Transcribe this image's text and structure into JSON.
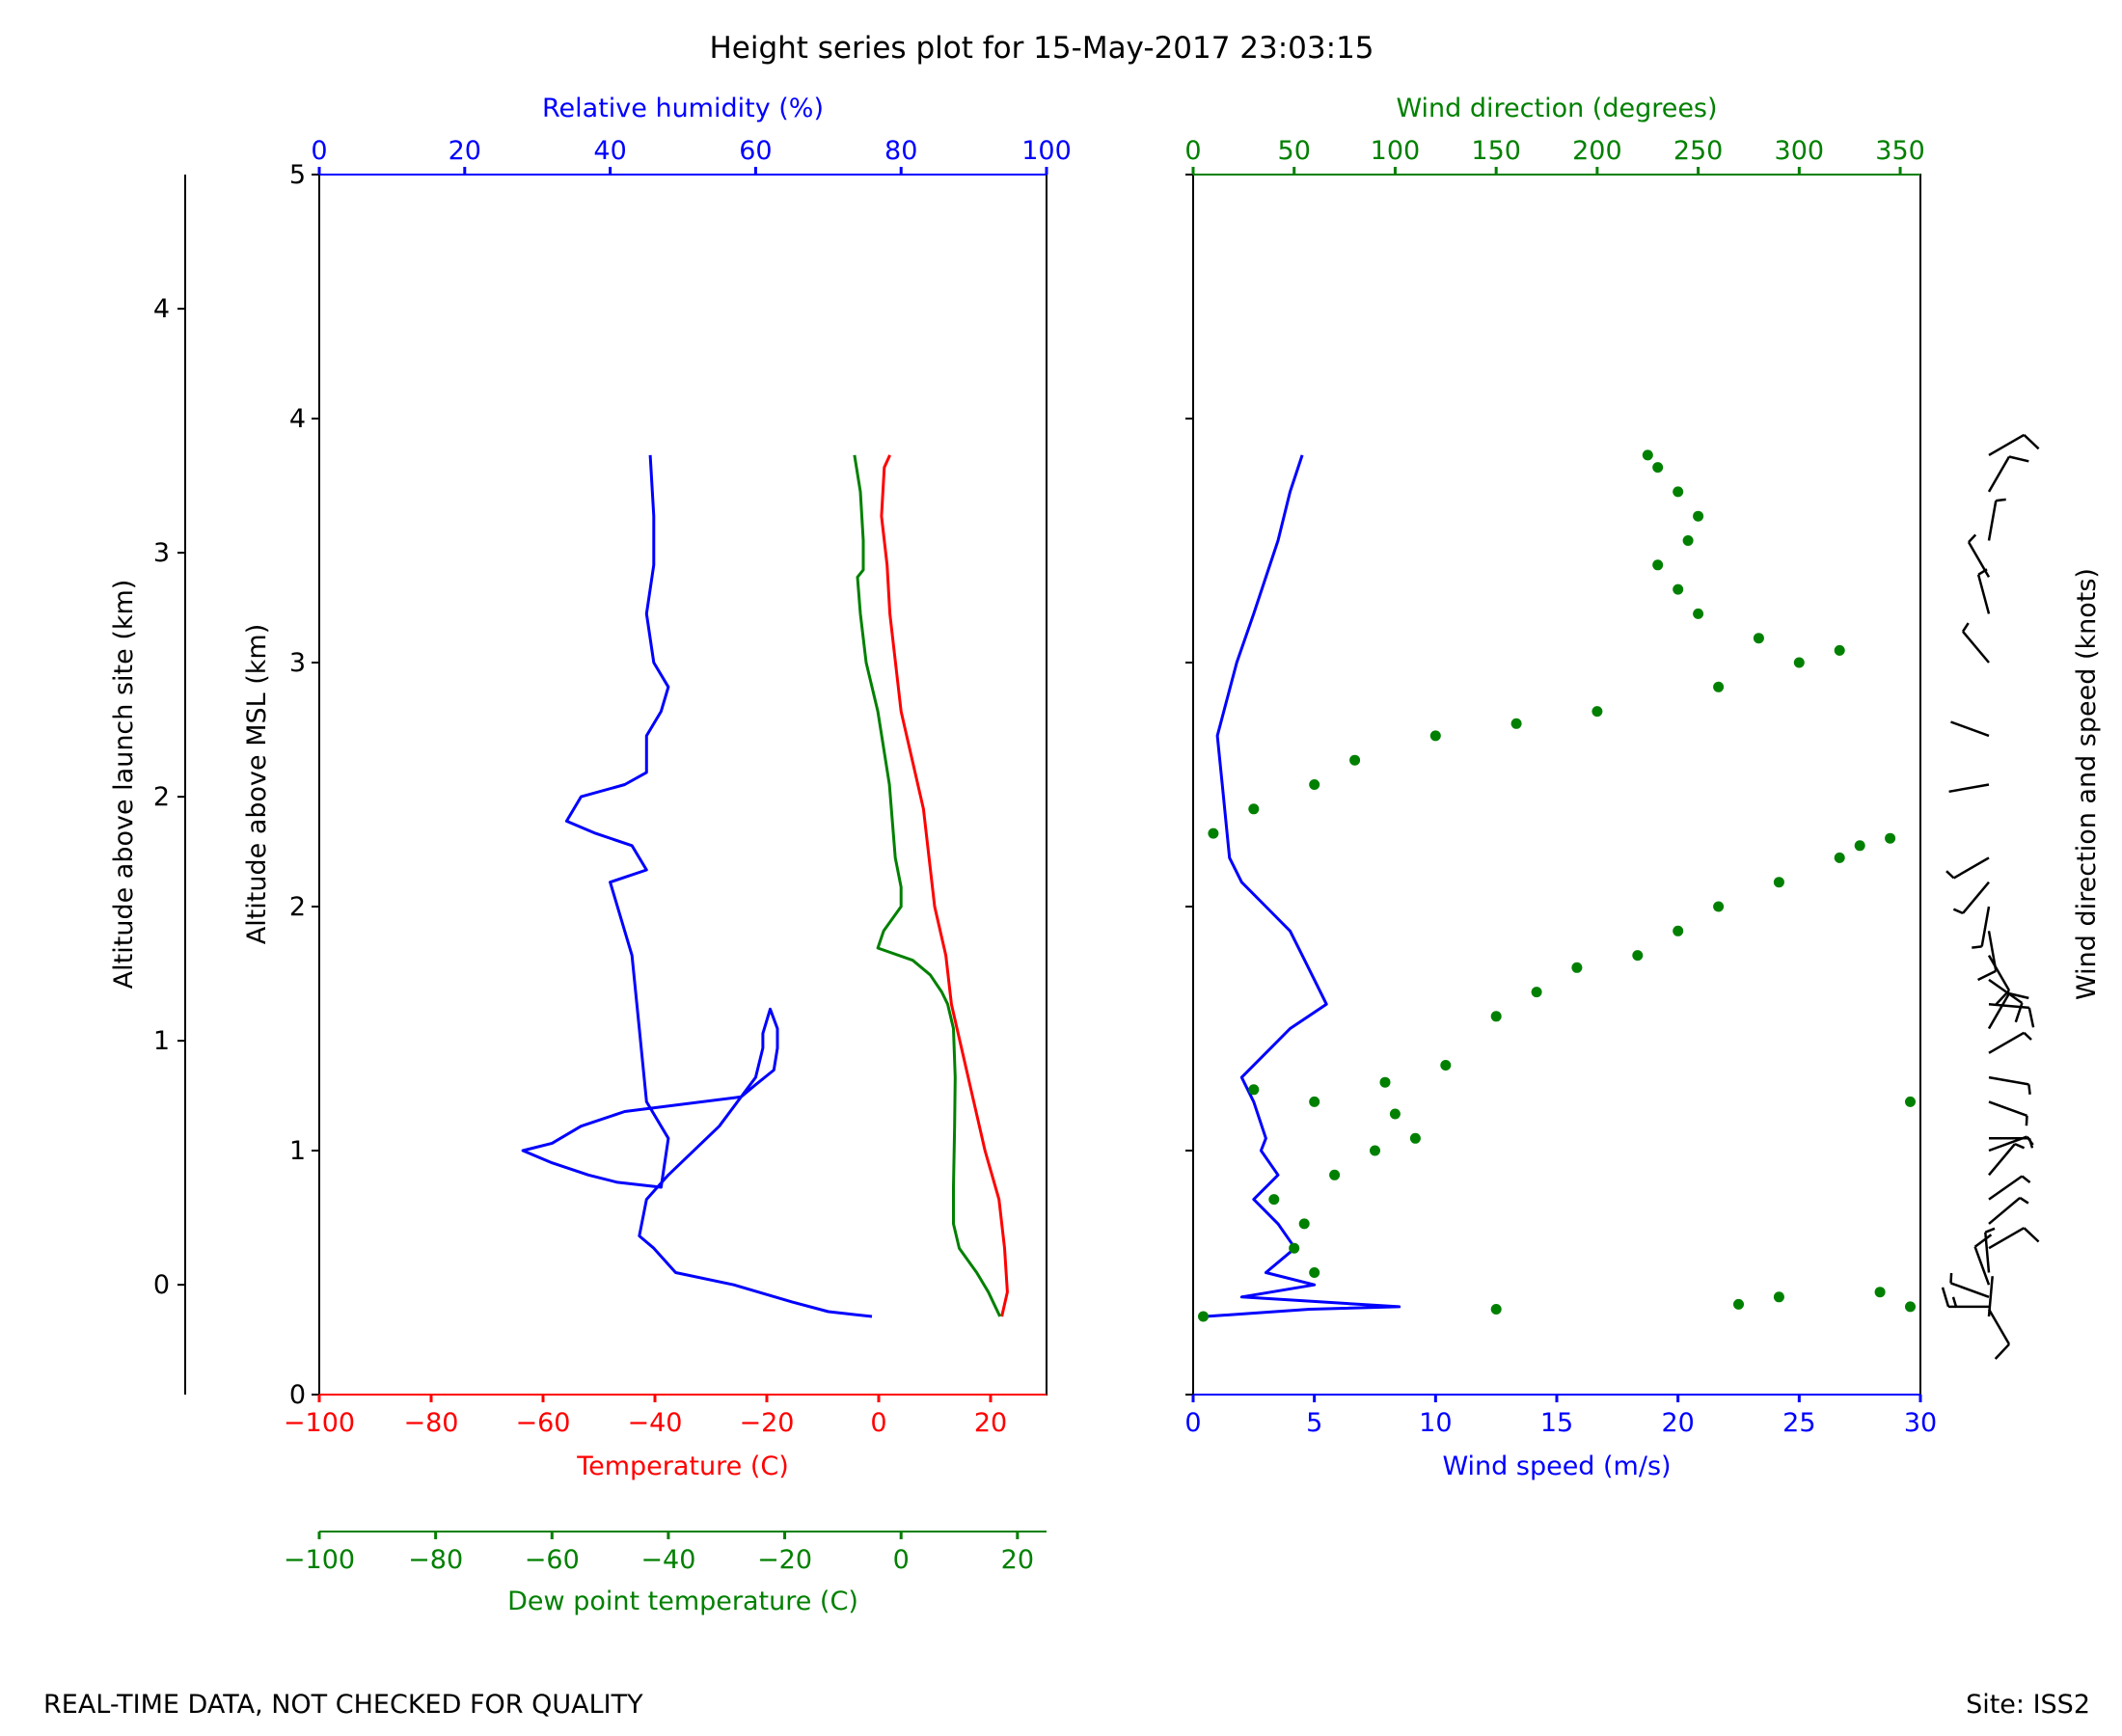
{
  "figure_title": "Height series plot for 15-May-2017 23:03:15",
  "footer_left": "REAL-TIME DATA, NOT CHECKED FOR QUALITY",
  "footer_right": "Site: ISS2",
  "colors": {
    "temperature": "#ff0000",
    "dewpoint": "#008000",
    "humidity": "#0000ff",
    "wind_speed": "#0000ff",
    "wind_direction": "#008000",
    "axes": "#000000"
  },
  "chart_data": [
    {
      "type": "line",
      "panel": "thermodynamic",
      "ylabel_msl": "Altitude above MSL (km)",
      "ylabel_launch": "Altitude above launch site (km)",
      "ylim_msl": [
        0,
        5
      ],
      "ylim_launch": [
        -0.45,
        4.55
      ],
      "yticks_msl": [
        "0",
        "1",
        "2",
        "3",
        "4",
        "5"
      ],
      "yticks_msl_values": [
        0,
        1.0,
        2.0,
        3.0,
        4.0,
        5.0
      ],
      "yticks_launch": [
        "0",
        "1",
        "2",
        "3",
        "4"
      ],
      "yticks_launch_values": [
        0,
        1,
        2,
        3,
        4
      ],
      "temperature_axis": {
        "label": "Temperature (C)",
        "xlim": [
          -100,
          30
        ],
        "ticks": [
          -100,
          -80,
          -60,
          -40,
          -20,
          0,
          20
        ],
        "tick_labels": [
          "−100",
          "−80",
          "−60",
          "−40",
          "−20",
          "0",
          "20"
        ]
      },
      "dewpoint_axis": {
        "label": "Dew point temperature (C)",
        "xlim": [
          -100,
          25
        ],
        "ticks": [
          -100,
          -80,
          -60,
          -40,
          -20,
          0,
          20
        ],
        "tick_labels": [
          "−100",
          "−80",
          "−60",
          "−40",
          "−20",
          "0",
          "20"
        ]
      },
      "humidity_axis": {
        "label": "Relative humidity (%)",
        "xlim": [
          0,
          100
        ],
        "ticks": [
          0,
          20,
          40,
          60,
          80,
          100
        ],
        "tick_labels": [
          "0",
          "20",
          "40",
          "60",
          "80",
          "100"
        ]
      },
      "series": [
        {
          "name": "Temperature",
          "axis": "temperature",
          "points": [
            [
              22,
              0.32
            ],
            [
              23,
              0.42
            ],
            [
              22.5,
              0.6
            ],
            [
              21.5,
              0.8
            ],
            [
              19,
              1.0
            ],
            [
              17,
              1.2
            ],
            [
              15,
              1.4
            ],
            [
              13,
              1.6
            ],
            [
              12,
              1.8
            ],
            [
              10,
              2.0
            ],
            [
              9,
              2.2
            ],
            [
              8,
              2.4
            ],
            [
              6,
              2.6
            ],
            [
              4,
              2.8
            ],
            [
              3,
              3.0
            ],
            [
              2,
              3.2
            ],
            [
              1.5,
              3.4
            ],
            [
              0.5,
              3.6
            ],
            [
              1,
              3.8
            ],
            [
              2,
              3.85
            ]
          ]
        },
        {
          "name": "Dew point",
          "axis": "dewpoint",
          "points": [
            [
              17,
              0.32
            ],
            [
              15,
              0.42
            ],
            [
              13,
              0.5
            ],
            [
              10,
              0.6
            ],
            [
              9,
              0.7
            ],
            [
              9,
              0.85
            ],
            [
              9.2,
              1.1
            ],
            [
              9.3,
              1.3
            ],
            [
              9,
              1.5
            ],
            [
              8,
              1.6
            ],
            [
              7,
              1.65
            ],
            [
              5,
              1.72
            ],
            [
              2,
              1.78
            ],
            [
              -4,
              1.83
            ],
            [
              -3,
              1.9
            ],
            [
              0,
              2.0
            ],
            [
              0,
              2.08
            ],
            [
              -1,
              2.2
            ],
            [
              -2,
              2.5
            ],
            [
              -4,
              2.8
            ],
            [
              -6,
              3.0
            ],
            [
              -7,
              3.2
            ],
            [
              -7.5,
              3.35
            ],
            [
              -6.5,
              3.38
            ],
            [
              -6.5,
              3.5
            ],
            [
              -7,
              3.7
            ],
            [
              -8,
              3.85
            ]
          ]
        },
        {
          "name": "Relative humidity",
          "axis": "humidity",
          "points": [
            [
              76,
              0.32
            ],
            [
              70,
              0.34
            ],
            [
              65,
              0.38
            ],
            [
              57,
              0.45
            ],
            [
              49,
              0.5
            ],
            [
              46,
              0.6
            ],
            [
              44,
              0.65
            ],
            [
              45,
              0.8
            ],
            [
              48,
              0.9
            ],
            [
              55,
              1.1
            ],
            [
              60,
              1.3
            ],
            [
              61,
              1.42
            ],
            [
              61,
              1.48
            ],
            [
              62,
              1.58
            ],
            [
              63,
              1.5
            ],
            [
              63,
              1.42
            ],
            [
              62.5,
              1.33
            ],
            [
              60,
              1.27
            ],
            [
              58,
              1.22
            ],
            [
              42,
              1.16
            ],
            [
              36,
              1.1
            ],
            [
              32,
              1.03
            ],
            [
              28,
              1.0
            ],
            [
              32,
              0.95
            ],
            [
              37,
              0.9
            ],
            [
              41,
              0.87
            ],
            [
              47,
              0.85
            ],
            [
              48,
              1.05
            ],
            [
              45,
              1.2
            ],
            [
              44,
              1.5
            ],
            [
              43,
              1.8
            ],
            [
              40,
              2.1
            ],
            [
              45,
              2.15
            ],
            [
              43,
              2.25
            ],
            [
              38,
              2.3
            ],
            [
              34,
              2.35
            ],
            [
              36,
              2.45
            ],
            [
              42,
              2.5
            ],
            [
              45,
              2.55
            ],
            [
              45,
              2.7
            ],
            [
              47,
              2.8
            ],
            [
              48,
              2.9
            ],
            [
              46,
              3.0
            ],
            [
              45,
              3.2
            ],
            [
              46,
              3.4
            ],
            [
              46,
              3.6
            ],
            [
              45.5,
              3.85
            ]
          ]
        }
      ]
    },
    {
      "type": "scatter",
      "panel": "wind",
      "wind_speed_axis": {
        "label": "Wind speed (m/s)",
        "xlim": [
          0,
          30
        ],
        "ticks": [
          0,
          5,
          10,
          15,
          20,
          25,
          30
        ],
        "tick_labels": [
          "0",
          "5",
          "10",
          "15",
          "20",
          "25",
          "30"
        ]
      },
      "wind_direction_axis": {
        "label": "Wind direction (degrees)",
        "xlim": [
          0,
          360
        ],
        "ticks": [
          0,
          50,
          100,
          150,
          200,
          250,
          300,
          350
        ],
        "tick_labels": [
          "0",
          "50",
          "100",
          "150",
          "200",
          "250",
          "300",
          "350"
        ]
      },
      "barb_label": "Wind direction and speed (knots)",
      "series": [
        {
          "name": "Wind speed",
          "style": "line",
          "points": [
            [
              0.5,
              0.32
            ],
            [
              4.8,
              0.35
            ],
            [
              8.5,
              0.36
            ],
            [
              2,
              0.4
            ],
            [
              5,
              0.45
            ],
            [
              3,
              0.5
            ],
            [
              4.2,
              0.6
            ],
            [
              3.5,
              0.7
            ],
            [
              2.5,
              0.8
            ],
            [
              3.5,
              0.9
            ],
            [
              2.8,
              1.0
            ],
            [
              3,
              1.05
            ],
            [
              2.5,
              1.2
            ],
            [
              2,
              1.3
            ],
            [
              3,
              1.4
            ],
            [
              4,
              1.5
            ],
            [
              5.5,
              1.6
            ],
            [
              5,
              1.7
            ],
            [
              4.5,
              1.8
            ],
            [
              4,
              1.9
            ],
            [
              3,
              2.0
            ],
            [
              2,
              2.1
            ],
            [
              1.5,
              2.2
            ],
            [
              1.2,
              2.5
            ],
            [
              1,
              2.7
            ],
            [
              1.8,
              3.0
            ],
            [
              2.5,
              3.2
            ],
            [
              3,
              3.35
            ],
            [
              3.5,
              3.5
            ],
            [
              4,
              3.7
            ],
            [
              4.5,
              3.85
            ]
          ]
        },
        {
          "name": "Wind direction",
          "style": "markers",
          "points": [
            [
              5,
              0.32
            ],
            [
              150,
              0.35
            ],
            [
              270,
              0.37
            ],
            [
              290,
              0.4
            ],
            [
              340,
              0.42
            ],
            [
              355,
              0.36
            ],
            [
              60,
              0.5
            ],
            [
              50,
              0.6
            ],
            [
              55,
              0.7
            ],
            [
              40,
              0.8
            ],
            [
              70,
              0.9
            ],
            [
              90,
              1.0
            ],
            [
              110,
              1.05
            ],
            [
              100,
              1.15
            ],
            [
              60,
              1.2
            ],
            [
              30,
              1.25
            ],
            [
              95,
              1.28
            ],
            [
              125,
              1.35
            ],
            [
              150,
              1.55
            ],
            [
              170,
              1.65
            ],
            [
              190,
              1.75
            ],
            [
              220,
              1.8
            ],
            [
              240,
              1.9
            ],
            [
              260,
              2.0
            ],
            [
              290,
              2.1
            ],
            [
              320,
              2.2
            ],
            [
              345,
              2.28
            ],
            [
              330,
              2.25
            ],
            [
              10,
              2.3
            ],
            [
              30,
              2.4
            ],
            [
              60,
              2.5
            ],
            [
              80,
              2.6
            ],
            [
              120,
              2.7
            ],
            [
              160,
              2.75
            ],
            [
              200,
              2.8
            ],
            [
              260,
              2.9
            ],
            [
              300,
              3.0
            ],
            [
              320,
              3.05
            ],
            [
              280,
              3.1
            ],
            [
              250,
              3.2
            ],
            [
              240,
              3.3
            ],
            [
              230,
              3.4
            ],
            [
              245,
              3.5
            ],
            [
              250,
              3.6
            ],
            [
              240,
              3.7
            ],
            [
              230,
              3.8
            ],
            [
              225,
              3.85
            ],
            [
              355,
              1.2
            ]
          ]
        }
      ]
    }
  ]
}
